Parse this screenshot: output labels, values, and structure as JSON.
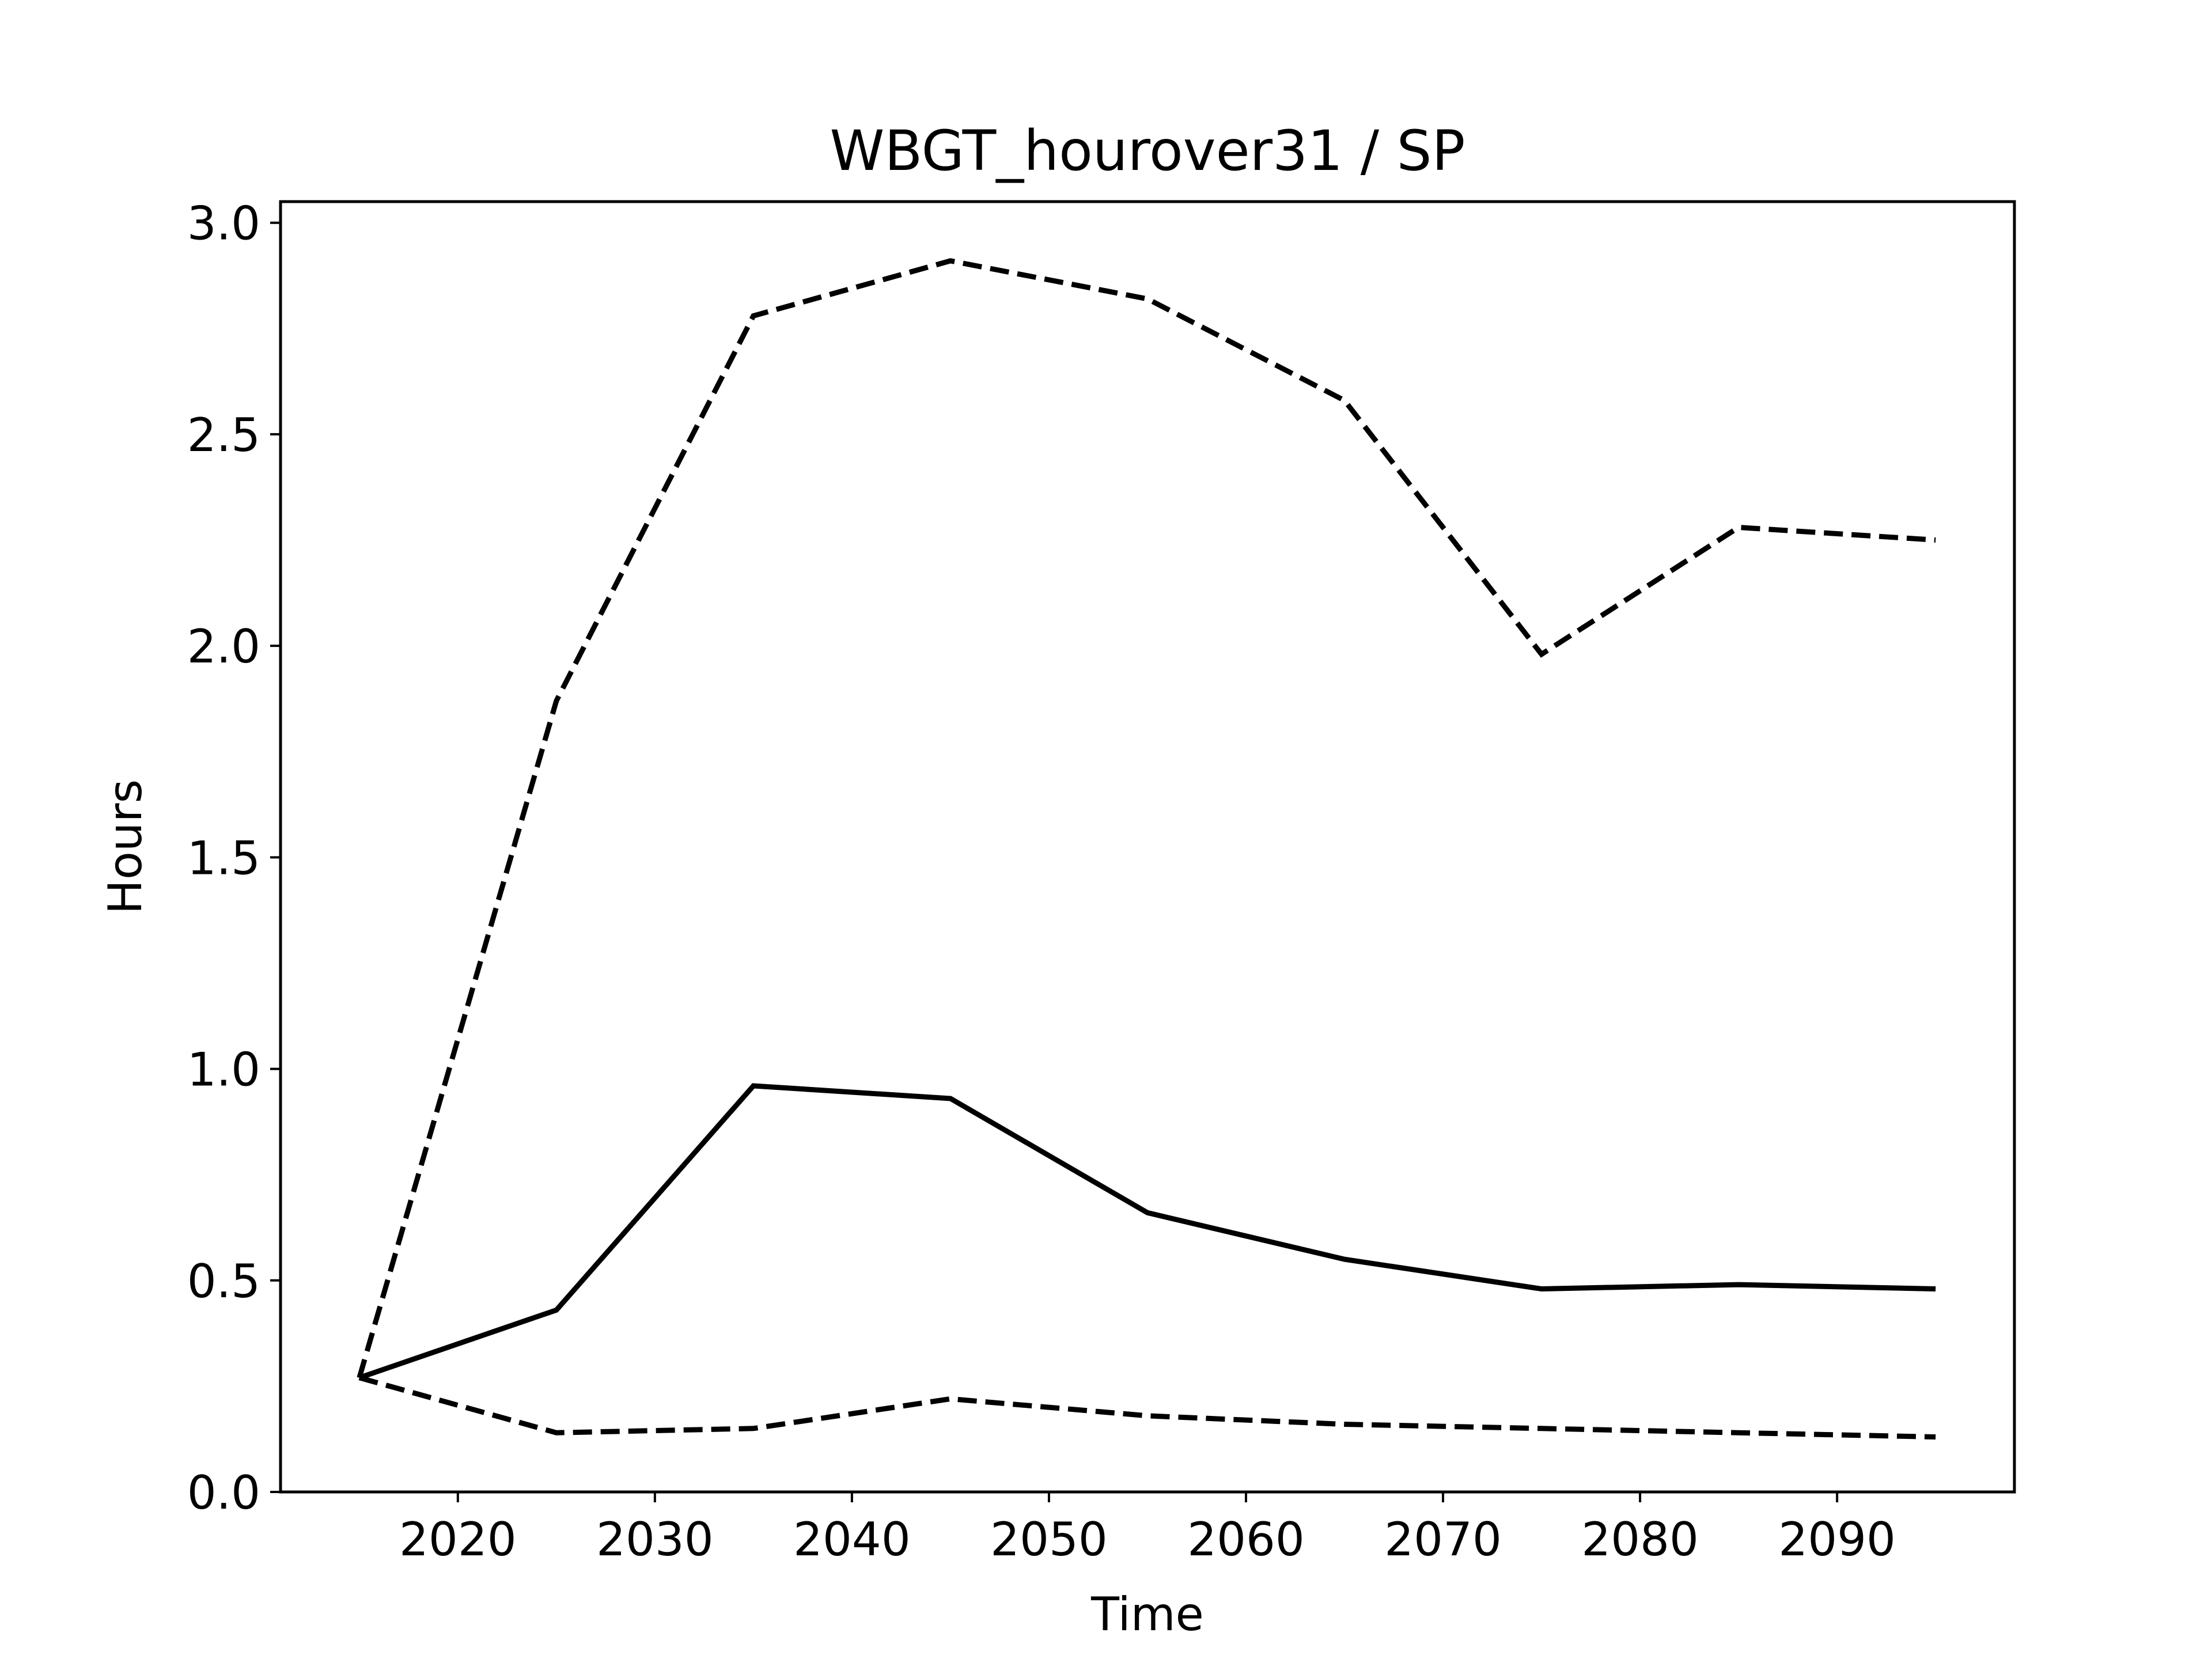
{
  "chart_data": {
    "type": "line",
    "title": "WBGT_hourover31 / SP",
    "xlabel": "Time",
    "ylabel": "Hours",
    "xlim": [
      2011,
      2099
    ],
    "ylim": [
      0,
      3.05
    ],
    "x_ticks": [
      2020,
      2030,
      2040,
      2050,
      2060,
      2070,
      2080,
      2090
    ],
    "y_ticks": [
      0.0,
      0.5,
      1.0,
      1.5,
      2.0,
      2.5,
      3.0
    ],
    "grid": false,
    "legend": "none",
    "x": [
      2015,
      2025,
      2035,
      2045,
      2055,
      2065,
      2075,
      2085,
      2095
    ],
    "series": [
      {
        "style": "dashed",
        "color": "#000000",
        "values": [
          0.27,
          1.87,
          2.78,
          2.91,
          2.82,
          2.58,
          1.98,
          2.28,
          2.25
        ]
      },
      {
        "style": "solid",
        "color": "#000000",
        "values": [
          0.27,
          0.43,
          0.96,
          0.93,
          0.66,
          0.55,
          0.48,
          0.49,
          0.48
        ]
      },
      {
        "style": "dashed",
        "color": "#000000",
        "values": [
          0.27,
          0.14,
          0.15,
          0.22,
          0.18,
          0.16,
          0.15,
          0.14,
          0.13
        ]
      }
    ]
  }
}
